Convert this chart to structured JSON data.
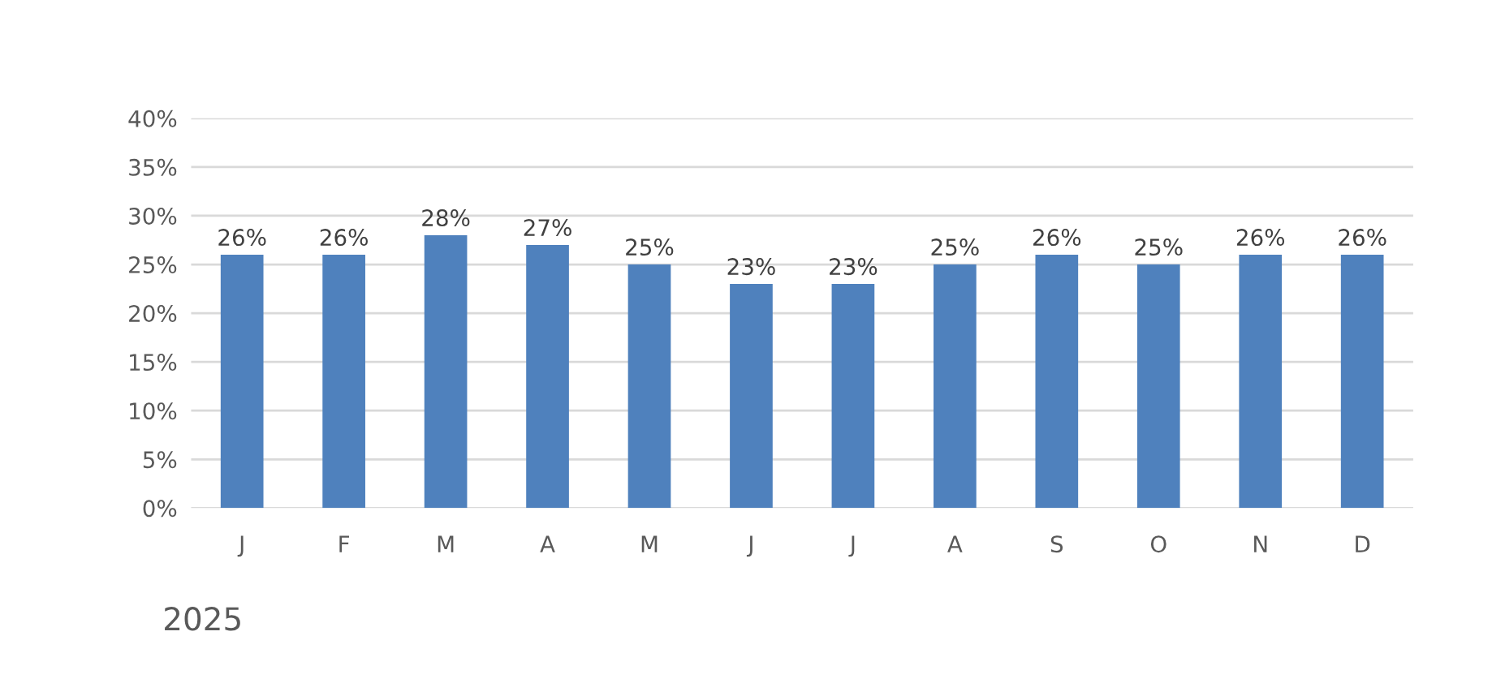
{
  "chart_data": {
    "type": "bar",
    "categories": [
      "J",
      "F",
      "M",
      "A",
      "M",
      "J",
      "J",
      "A",
      "S",
      "O",
      "N",
      "D"
    ],
    "values": [
      26,
      26,
      28,
      27,
      25,
      23,
      23,
      25,
      26,
      25,
      26,
      26
    ],
    "value_labels": [
      "26%",
      "26%",
      "28%",
      "27%",
      "25%",
      "23%",
      "23%",
      "25%",
      "26%",
      "25%",
      "26%",
      "26%"
    ],
    "color": "#4f81bd",
    "ylim": [
      0,
      40
    ],
    "yticks": [
      {
        "value": 0,
        "label": "0%"
      },
      {
        "value": 5,
        "label": "5%"
      },
      {
        "value": 10,
        "label": "10%"
      },
      {
        "value": 15,
        "label": "15%"
      },
      {
        "value": 20,
        "label": "20%"
      },
      {
        "value": 25,
        "label": "25%"
      },
      {
        "value": 30,
        "label": "30%"
      },
      {
        "value": 35,
        "label": "35%"
      },
      {
        "value": 40,
        "label": "40%"
      }
    ],
    "grid": "y",
    "legend": false,
    "annotations": [
      "2025"
    ]
  }
}
